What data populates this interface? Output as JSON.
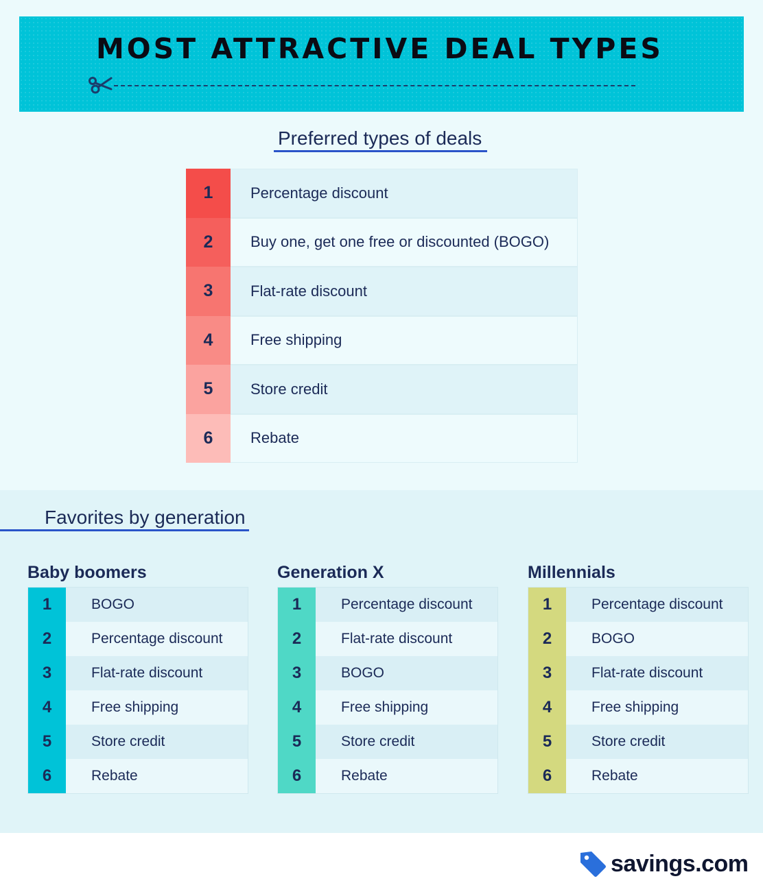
{
  "header": {
    "title": "MOST ATTRACTIVE DEAL TYPES"
  },
  "preferred": {
    "heading": "Preferred types of deals",
    "rows": [
      {
        "rank": "1",
        "label": "Percentage discount",
        "color": "#f44d4a"
      },
      {
        "rank": "2",
        "label": "Buy one, get one free or discounted (BOGO)",
        "color": "#f55f5c"
      },
      {
        "rank": "3",
        "label": "Flat-rate discount",
        "color": "#f77570"
      },
      {
        "rank": "4",
        "label": "Free shipping",
        "color": "#f98b86"
      },
      {
        "rank": "5",
        "label": "Store credit",
        "color": "#fba39f"
      },
      {
        "rank": "6",
        "label": "Rebate",
        "color": "#fdbcb8"
      }
    ]
  },
  "generations": {
    "heading": "Favorites by generation",
    "columns": [
      {
        "title": "Baby boomers",
        "color": "#00c3d8",
        "rows": [
          {
            "rank": "1",
            "label": "BOGO"
          },
          {
            "rank": "2",
            "label": "Percentage discount"
          },
          {
            "rank": "3",
            "label": "Flat-rate discount"
          },
          {
            "rank": "4",
            "label": "Free shipping"
          },
          {
            "rank": "5",
            "label": "Store credit"
          },
          {
            "rank": "6",
            "label": "Rebate"
          }
        ]
      },
      {
        "title": "Generation X",
        "color": "#4fd8c6",
        "rows": [
          {
            "rank": "1",
            "label": "Percentage discount"
          },
          {
            "rank": "2",
            "label": "Flat-rate discount"
          },
          {
            "rank": "3",
            "label": "BOGO"
          },
          {
            "rank": "4",
            "label": "Free shipping"
          },
          {
            "rank": "5",
            "label": "Store credit"
          },
          {
            "rank": "6",
            "label": "Rebate"
          }
        ]
      },
      {
        "title": "Millennials",
        "color": "#d4d97f",
        "rows": [
          {
            "rank": "1",
            "label": "Percentage discount"
          },
          {
            "rank": "2",
            "label": "BOGO"
          },
          {
            "rank": "3",
            "label": "Flat-rate discount"
          },
          {
            "rank": "4",
            "label": "Free shipping"
          },
          {
            "rank": "5",
            "label": "Store credit"
          },
          {
            "rank": "6",
            "label": "Rebate"
          }
        ]
      }
    ]
  },
  "brand": {
    "name": "savings.com",
    "icon": "price-tag-icon",
    "color": "#2a6fdb"
  }
}
